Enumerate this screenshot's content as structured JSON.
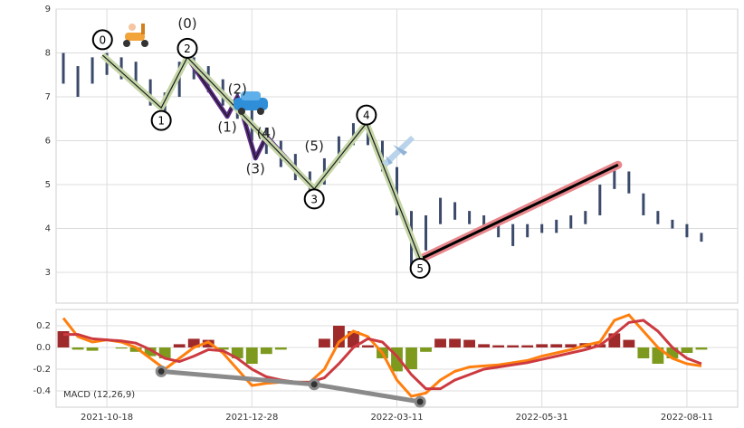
{
  "chart_data": [
    {
      "type": "range",
      "color": "#3b4a6b",
      "low": [
        7.3,
        7.0,
        7.3,
        7.5,
        7.4,
        7.2,
        6.8,
        6.6,
        7.0,
        7.4,
        7.1,
        6.8,
        6.5,
        6.0,
        5.7,
        5.4,
        5.1,
        4.8,
        5.0,
        5.5,
        5.9,
        5.9,
        5.3,
        4.3,
        3.1,
        3.5,
        4.1,
        4.2,
        4.1,
        4.0,
        3.8,
        3.6,
        3.8,
        3.9,
        3.9,
        4.0,
        4.1,
        4.3,
        4.9,
        4.8,
        4.3,
        4.1,
        4.0,
        3.8,
        3.7,
        null,
        null
      ],
      "high": [
        8.0,
        7.7,
        7.9,
        8.0,
        7.9,
        7.8,
        7.4,
        7.1,
        7.8,
        7.9,
        7.7,
        7.4,
        7.1,
        6.7,
        6.3,
        6.0,
        5.7,
        5.3,
        5.6,
        6.1,
        6.4,
        6.45,
        6.0,
        5.4,
        4.4,
        4.3,
        4.7,
        4.6,
        4.4,
        4.3,
        4.2,
        4.1,
        4.1,
        4.1,
        4.2,
        4.3,
        4.4,
        5.0,
        5.5,
        5.3,
        4.8,
        4.4,
        4.2,
        4.1,
        3.9,
        null,
        null
      ],
      "ylim": [
        2.3,
        9
      ],
      "yticks": [
        3,
        4,
        5,
        6,
        7,
        8,
        9
      ],
      "grid": true,
      "waves": [
        {
          "label": "0",
          "x": 2.7,
          "y": 7.95
        },
        {
          "label": "1",
          "x": 6.75,
          "y": 6.75
        },
        {
          "label": "2",
          "x": 8.55,
          "y": 7.9
        },
        {
          "label": "3",
          "x": 17.3,
          "y": 4.9
        },
        {
          "label": "4",
          "x": 20.9,
          "y": 6.4
        },
        {
          "label": "5",
          "x": 24.6,
          "y": 3.3
        }
      ],
      "wave_color": "#c5d6a8",
      "subwaves": [
        {
          "label": "(0)",
          "x": 8.55,
          "y": 7.9
        },
        {
          "label": "(1)",
          "x": 11.3,
          "y": 6.55
        },
        {
          "label": "(2)",
          "x": 12.0,
          "y": 7.0
        },
        {
          "label": "(3)",
          "x": 13.25,
          "y": 5.6
        },
        {
          "label": "(4)",
          "x": 14.0,
          "y": 6.1
        },
        {
          "label": "(5)",
          "x": 17.3,
          "y": 4.9
        }
      ],
      "subwave_color": "#5a2a86",
      "trend": {
        "x": [
          24.6,
          38.25
        ],
        "y": [
          3.3,
          5.45
        ],
        "color": "#e8868c"
      }
    },
    {
      "type": "macd",
      "annotation": "MACD (12,26,9)",
      "categories": [
        null,
        null,
        null,
        "2021-10-18",
        null,
        null,
        null,
        null,
        null,
        null,
        null,
        null,
        null,
        "2021-12-28",
        null,
        null,
        null,
        null,
        null,
        null,
        null,
        null,
        null,
        "2022-03-11",
        null,
        null,
        null,
        null,
        null,
        null,
        null,
        null,
        null,
        "2022-05-31",
        null,
        null,
        null,
        null,
        null,
        null,
        null,
        null,
        null,
        "2022-08-11",
        null,
        null,
        null
      ],
      "histogram": {
        "values": [
          0.15,
          -0.02,
          -0.03,
          0,
          -0.01,
          -0.04,
          -0.08,
          -0.1,
          0.03,
          0.08,
          0.07,
          -0.02,
          -0.1,
          -0.15,
          -0.06,
          -0.02,
          0,
          0,
          0.08,
          0.2,
          0.15,
          0.02,
          -0.1,
          -0.22,
          -0.2,
          -0.04,
          0.08,
          0.08,
          0.07,
          0.03,
          0.02,
          0.02,
          0.02,
          0.03,
          0.03,
          0.03,
          0.04,
          0.03,
          0.13,
          0.07,
          -0.1,
          -0.15,
          -0.1,
          -0.05,
          -0.02,
          null,
          null
        ],
        "pos_color": "#9e2a2b",
        "neg_color": "#7d9a1e"
      },
      "series": [
        {
          "color": "#ff7f0e",
          "values": [
            0.27,
            0.1,
            0.05,
            0.07,
            0.05,
            0.0,
            -0.1,
            -0.2,
            -0.1,
            0.0,
            0.05,
            -0.05,
            -0.2,
            -0.35,
            -0.33,
            -0.32,
            -0.32,
            -0.32,
            -0.2,
            0.05,
            0.15,
            0.1,
            -0.05,
            -0.3,
            -0.45,
            -0.42,
            -0.3,
            -0.22,
            -0.18,
            -0.17,
            -0.16,
            -0.14,
            -0.12,
            -0.08,
            -0.05,
            -0.02,
            0.02,
            0.05,
            0.25,
            0.3,
            0.15,
            0.0,
            -0.1,
            -0.15,
            -0.17,
            null,
            null
          ]
        },
        {
          "color": "#cc3a40",
          "values": [
            0.12,
            0.12,
            0.08,
            0.07,
            0.06,
            0.04,
            -0.02,
            -0.1,
            -0.13,
            -0.08,
            -0.02,
            -0.03,
            -0.1,
            -0.2,
            -0.27,
            -0.3,
            -0.32,
            -0.32,
            -0.28,
            -0.15,
            0.0,
            0.08,
            0.05,
            -0.08,
            -0.25,
            -0.38,
            -0.38,
            -0.3,
            -0.25,
            -0.2,
            -0.18,
            -0.16,
            -0.14,
            -0.11,
            -0.08,
            -0.05,
            -0.02,
            0.02,
            0.12,
            0.23,
            0.25,
            0.15,
            0.0,
            -0.1,
            -0.15,
            null,
            null
          ]
        }
      ],
      "divergence": {
        "x": [
          6.75,
          17.3,
          24.6
        ],
        "y": [
          -0.22,
          -0.34,
          -0.5
        ],
        "color": "#8a8a8a"
      },
      "ylim": [
        -0.55,
        0.35
      ],
      "yticks": [
        -0.4,
        -0.2,
        {
          "value": 0,
          "label": "0.0"
        },
        0.2
      ],
      "grid": true
    }
  ]
}
